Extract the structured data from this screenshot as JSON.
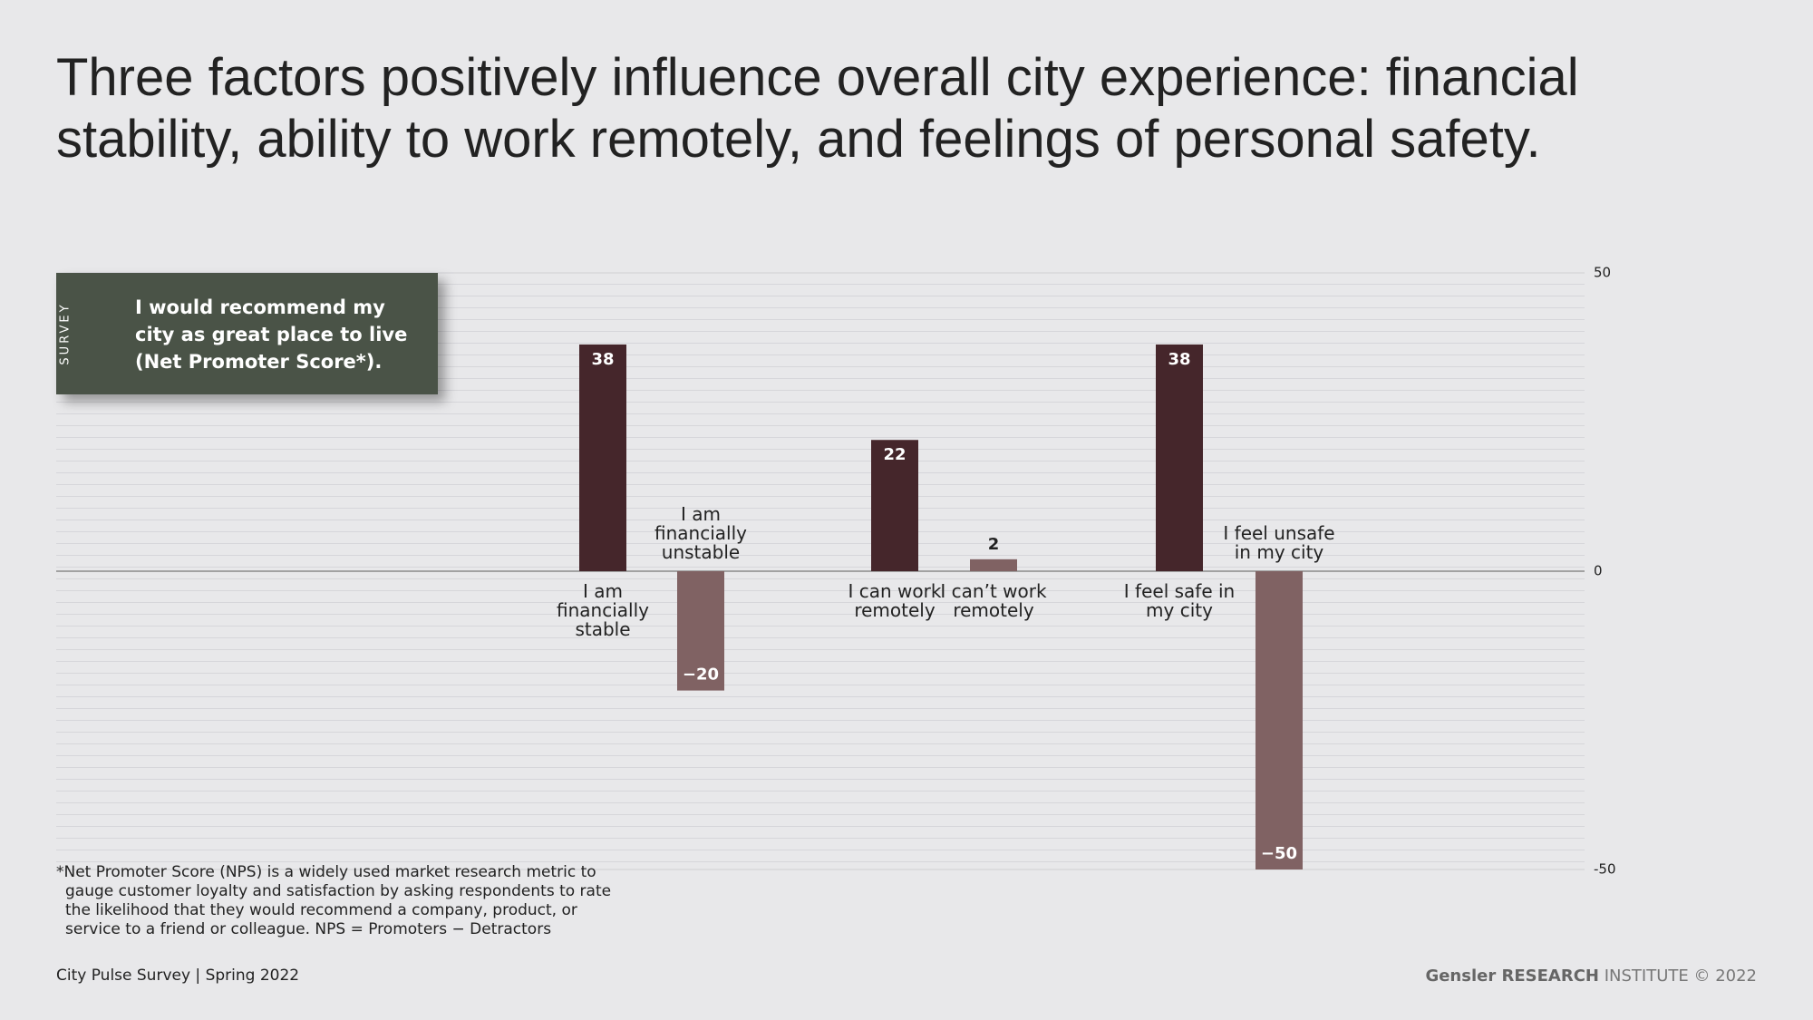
{
  "chart_data": {
    "type": "bar",
    "title": "Three factors positively influence overall city experience: financial stability, ability to work remotely, and feelings of personal safety.",
    "box_label": "SURVEY",
    "box_text": "I would recommend my city as great place to live (Net Promoter Score*).",
    "categories": [
      "I am financially stable",
      "I am financially unstable",
      "I can work remotely",
      "I can’t work remotely",
      "I feel safe in my city",
      "I feel unsafe in my city"
    ],
    "values": [
      38,
      -20,
      22,
      2,
      38,
      -50
    ],
    "value_labels": [
      "38",
      "−20",
      "22",
      "2",
      "38",
      "−50"
    ],
    "colors": [
      "#45262b",
      "#806263",
      "#45262b",
      "#806263",
      "#45262b",
      "#806263"
    ],
    "ylim": [
      -50,
      50
    ],
    "yticks": [
      -50,
      0,
      50
    ],
    "grid": true,
    "footnote": "*Net Promoter Score (NPS) is a widely used market research metric to gauge customer loyalty and satisfaction by asking respondents to rate the likelihood that they would recommend a company, product, or service to a friend or colleague.  NPS = Promoters − Detractors",
    "source": "City Pulse Survey | Spring 2022",
    "credit_brand": "Gensler RESEARCH",
    "credit_rest": "INSTITUTE © 2022"
  }
}
